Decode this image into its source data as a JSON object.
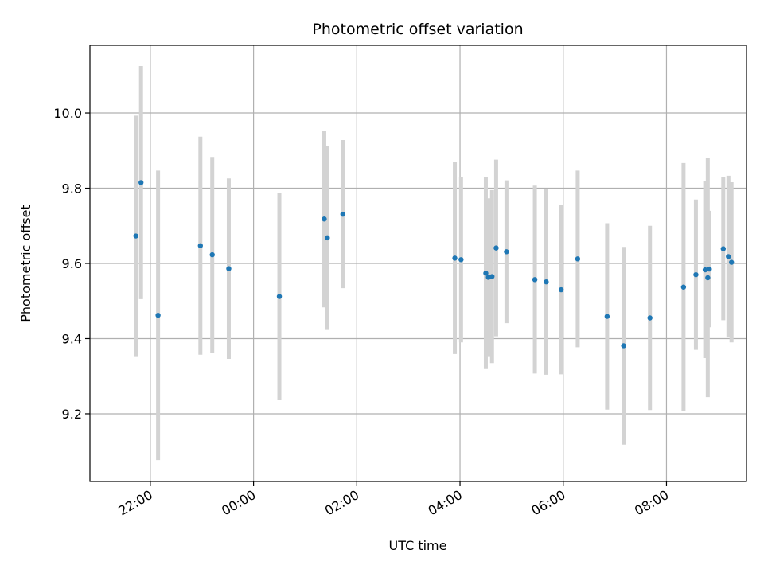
{
  "chart_data": {
    "type": "scatter",
    "title": "Photometric offset variation",
    "xlabel": "UTC time",
    "ylabel": "Photometric offset",
    "grid": true,
    "xlim_hours": [
      20.83,
      33.55
    ],
    "ylim": [
      9.02,
      10.18
    ],
    "x_ticks": [
      {
        "hour": 22,
        "label": "22:00"
      },
      {
        "hour": 24,
        "label": "00:00"
      },
      {
        "hour": 26,
        "label": "02:00"
      },
      {
        "hour": 28,
        "label": "04:00"
      },
      {
        "hour": 30,
        "label": "06:00"
      },
      {
        "hour": 32,
        "label": "08:00"
      }
    ],
    "y_ticks": [
      {
        "value": 9.2,
        "label": "9.2"
      },
      {
        "value": 9.4,
        "label": "9.4"
      },
      {
        "value": 9.6,
        "label": "9.6"
      },
      {
        "value": 9.8,
        "label": "9.8"
      },
      {
        "value": 10.0,
        "label": "10.0"
      }
    ],
    "series": [
      {
        "name": "offset",
        "marker_color": "#1f77b4",
        "errorbar_color": "#d3d3d3",
        "points": [
          {
            "x": 21.72,
            "y": 9.673,
            "yerr": 0.32
          },
          {
            "x": 21.82,
            "y": 9.815,
            "yerr": 0.31
          },
          {
            "x": 22.15,
            "y": 9.462,
            "yerr": 0.385
          },
          {
            "x": 22.97,
            "y": 9.647,
            "yerr": 0.29
          },
          {
            "x": 23.2,
            "y": 9.623,
            "yerr": 0.26
          },
          {
            "x": 23.52,
            "y": 9.586,
            "yerr": 0.24
          },
          {
            "x": 24.5,
            "y": 9.512,
            "yerr": 0.275
          },
          {
            "x": 25.37,
            "y": 9.718,
            "yerr": 0.235
          },
          {
            "x": 25.43,
            "y": 9.668,
            "yerr": 0.245
          },
          {
            "x": 25.73,
            "y": 9.731,
            "yerr": 0.197
          },
          {
            "x": 27.9,
            "y": 9.614,
            "yerr": 0.255
          },
          {
            "x": 28.02,
            "y": 9.61,
            "yerr": 0.22
          },
          {
            "x": 28.5,
            "y": 9.574,
            "yerr": 0.255
          },
          {
            "x": 28.55,
            "y": 9.563,
            "yerr": 0.21
          },
          {
            "x": 28.62,
            "y": 9.565,
            "yerr": 0.23
          },
          {
            "x": 28.7,
            "y": 9.641,
            "yerr": 0.235
          },
          {
            "x": 28.9,
            "y": 9.631,
            "yerr": 0.19
          },
          {
            "x": 29.45,
            "y": 9.557,
            "yerr": 0.25
          },
          {
            "x": 29.67,
            "y": 9.551,
            "yerr": 0.247
          },
          {
            "x": 29.96,
            "y": 9.53,
            "yerr": 0.225
          },
          {
            "x": 30.28,
            "y": 9.612,
            "yerr": 0.235
          },
          {
            "x": 30.85,
            "y": 9.459,
            "yerr": 0.248
          },
          {
            "x": 31.17,
            "y": 9.381,
            "yerr": 0.263
          },
          {
            "x": 31.68,
            "y": 9.455,
            "yerr": 0.245
          },
          {
            "x": 32.33,
            "y": 9.537,
            "yerr": 0.33
          },
          {
            "x": 32.57,
            "y": 9.57,
            "yerr": 0.2
          },
          {
            "x": 32.75,
            "y": 9.583,
            "yerr": 0.235
          },
          {
            "x": 32.8,
            "y": 9.562,
            "yerr": 0.318
          },
          {
            "x": 32.83,
            "y": 9.585,
            "yerr": 0.155
          },
          {
            "x": 33.1,
            "y": 9.639,
            "yerr": 0.19
          },
          {
            "x": 33.2,
            "y": 9.618,
            "yerr": 0.215
          },
          {
            "x": 33.26,
            "y": 9.603,
            "yerr": 0.213
          }
        ]
      }
    ]
  }
}
